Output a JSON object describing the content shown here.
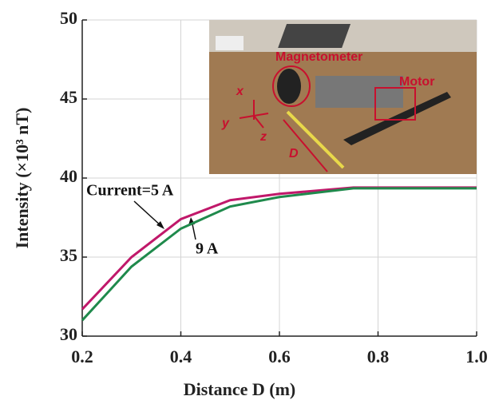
{
  "chart_data": {
    "type": "line",
    "x_label": "Distance D (m)",
    "y_label": "Intensity (×10³ nT)",
    "x": [
      0.2,
      0.3,
      0.4,
      0.5,
      0.6,
      0.75,
      1.0
    ],
    "series": [
      {
        "name": "Current=5 A",
        "color": "#c0186a",
        "values": [
          31.7,
          35.0,
          37.4,
          38.6,
          39.0,
          39.4,
          39.4
        ]
      },
      {
        "name": "9 A",
        "color": "#1f8a4c",
        "values": [
          31.0,
          34.4,
          36.8,
          38.2,
          38.8,
          39.35,
          39.35
        ]
      }
    ],
    "xlim": [
      0.2,
      1.0
    ],
    "xticks": [
      0.2,
      0.4,
      0.6,
      0.8,
      {
        "value": 1.0,
        "label": "1.0"
      }
    ],
    "ylim": [
      30,
      50
    ],
    "yticks": [
      30,
      35,
      40,
      45,
      50
    ],
    "grid": true,
    "annotations": [
      "Magnetometer",
      "Motor",
      "x",
      "y",
      "z",
      "D"
    ]
  }
}
